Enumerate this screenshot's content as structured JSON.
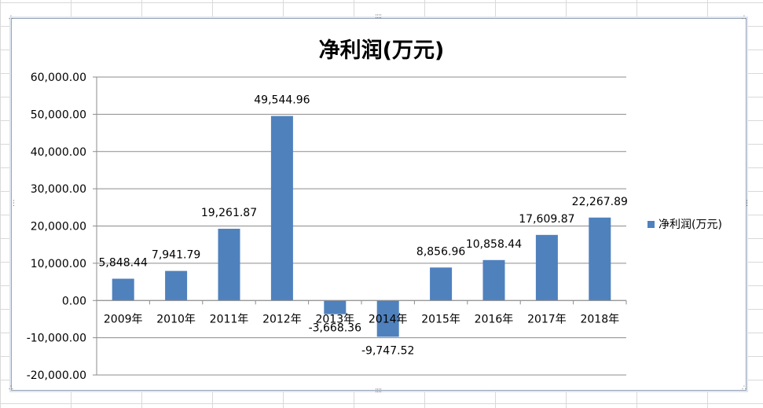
{
  "chart_data": {
    "type": "bar",
    "title": "净利润(万元)",
    "categories": [
      "2009年",
      "2010年",
      "2011年",
      "2012年",
      "2013年",
      "2014年",
      "2015年",
      "2016年",
      "2017年",
      "2018年"
    ],
    "series": [
      {
        "name": "净利润(万元)",
        "values": [
          5848.44,
          7941.79,
          19261.87,
          49544.96,
          -3668.36,
          -9747.52,
          8856.96,
          10858.44,
          17609.87,
          22267.89
        ],
        "labels": [
          "5,848.44",
          "7,941.79",
          "19,261.87",
          "49,544.96",
          "-3,668.36",
          "-9,747.52",
          "8,856.96",
          "10,858.44",
          "17,609.87",
          "22,267.89"
        ]
      }
    ],
    "ylim": [
      -20000,
      60000
    ],
    "yticks": [
      60000,
      50000,
      40000,
      30000,
      20000,
      10000,
      0,
      -10000,
      -20000
    ],
    "ytick_labels": [
      "60,000.00",
      "50,000.00",
      "40,000.00",
      "30,000.00",
      "20,000.00",
      "10,000.00",
      "0.00",
      "-10,000.00",
      "-20,000.00"
    ],
    "grid": true,
    "legend_position": "right",
    "bar_color": "#4f81bd"
  }
}
